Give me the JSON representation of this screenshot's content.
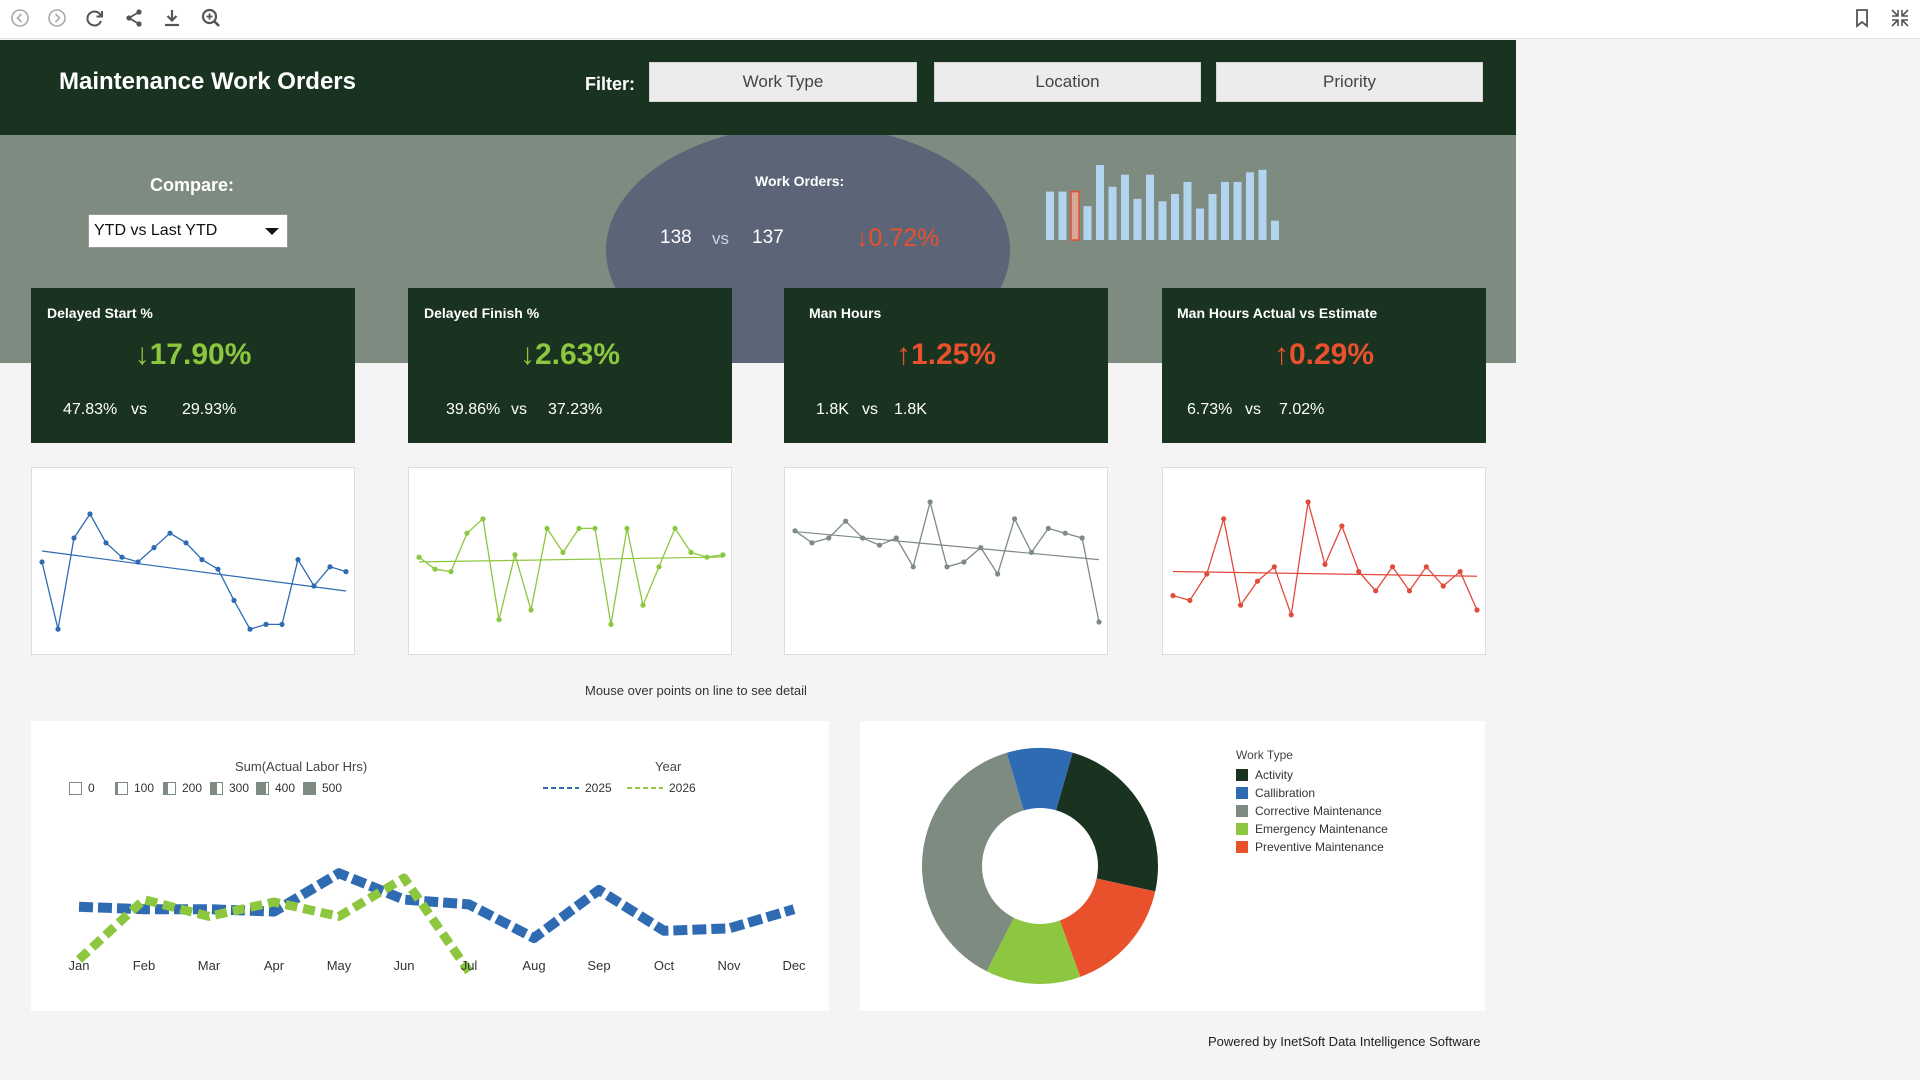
{
  "toolbar": {
    "left_icons": [
      "back-icon",
      "forward-icon",
      "refresh-icon",
      "share-icon",
      "download-icon",
      "zoom-icon"
    ],
    "right_icons": [
      "bookmark-icon",
      "collapse-icon"
    ]
  },
  "header": {
    "title": "Maintenance Work Orders",
    "filter_label": "Filter:",
    "filters": [
      "Work Type",
      "Location",
      "Priority"
    ]
  },
  "compare": {
    "label": "Compare:",
    "selected": "YTD vs Last YTD"
  },
  "work_orders": {
    "label": "Work Orders:",
    "current": "138",
    "vs": "vs",
    "previous": "137",
    "change": "↓0.72%",
    "bars": [
      40,
      40,
      40,
      28,
      62,
      44,
      54,
      34,
      54,
      32,
      38,
      48,
      26,
      38,
      48,
      48,
      56,
      58,
      16
    ],
    "highlight_index": 2
  },
  "kpis": [
    {
      "title": "Delayed Start %",
      "change": "↓17.90%",
      "current": "47.83%",
      "vs": "vs",
      "previous": "29.93%",
      "color": "#8dc63f"
    },
    {
      "title": "Delayed Finish %",
      "change": "↓2.63%",
      "current": "39.86%",
      "vs": "vs",
      "previous": "37.23%",
      "color": "#8dc63f"
    },
    {
      "title": "Man Hours",
      "change": "↑1.25%",
      "current": "1.8K",
      "vs": "vs",
      "previous": "1.8K",
      "color": "#e8512b"
    },
    {
      "title": "Man Hours Actual vs Estimate",
      "change": "↑0.29%",
      "current": "6.73%",
      "vs": "vs",
      "previous": "7.02%",
      "color": "#e8512b"
    }
  ],
  "trend_charts": [
    {
      "color": "#2f6bb3",
      "values": [
        60,
        32,
        70,
        80,
        68,
        62,
        60,
        66,
        72,
        68,
        61,
        57,
        44,
        32,
        34,
        34,
        61,
        50,
        58,
        56
      ]
    },
    {
      "color": "#8dc63f",
      "values": [
        62,
        57,
        56,
        72,
        78,
        36,
        63,
        40,
        74,
        64,
        74,
        74,
        34,
        74,
        42,
        58,
        74,
        64,
        62,
        63
      ]
    },
    {
      "color": "#7d8b81",
      "values": [
        73,
        68,
        70,
        77,
        70,
        67,
        70,
        58,
        85,
        58,
        60,
        66,
        55,
        78,
        64,
        74,
        72,
        70,
        35
      ]
    },
    {
      "color": "#e04b3c",
      "values": [
        46,
        44,
        55,
        78,
        42,
        52,
        58,
        38,
        85,
        59,
        75,
        56,
        48,
        58,
        48,
        58,
        50,
        56,
        40
      ]
    }
  ],
  "hint": "Mouse over points on line to see detail",
  "line_chart": {
    "size_legend_title": "Sum(Actual  Labor Hrs)",
    "size_legend": [
      "0",
      "100",
      "200",
      "300",
      "400",
      "500"
    ],
    "color_legend_title": "Year",
    "series": [
      {
        "name": "2025",
        "color": "#2f6bb3",
        "values": [
          330,
          320,
          320,
          310,
          470,
          360,
          340,
          200,
          400,
          230,
          240,
          320
        ]
      },
      {
        "name": "2026",
        "color": "#8dc63f",
        "values": [
          110,
          360,
          290,
          350,
          290,
          450,
          60
        ]
      }
    ],
    "months": [
      "Jan",
      "Feb",
      "Mar",
      "Apr",
      "May",
      "Jun",
      "Jul",
      "Aug",
      "Sep",
      "Oct",
      "Nov",
      "Dec"
    ]
  },
  "donut": {
    "legend_title": "Work Type",
    "slices": [
      {
        "label": "Activity",
        "value": 24,
        "color": "#1a3320"
      },
      {
        "label": "Preventive Maintenance",
        "value": 16,
        "color": "#e8512b"
      },
      {
        "label": "Emergency Maintenance",
        "value": 13,
        "color": "#8dc63f"
      },
      {
        "label": "Corrective Maintenance",
        "value": 38,
        "color": "#7d8b81"
      },
      {
        "label": "Callibration",
        "value": 9,
        "color": "#2f6bb3"
      }
    ],
    "legend_order": [
      "Activity",
      "Callibration",
      "Corrective Maintenance",
      "Emergency Maintenance",
      "Preventive Maintenance"
    ]
  },
  "footer": "Powered by InetSoft Data Intelligence Software"
}
